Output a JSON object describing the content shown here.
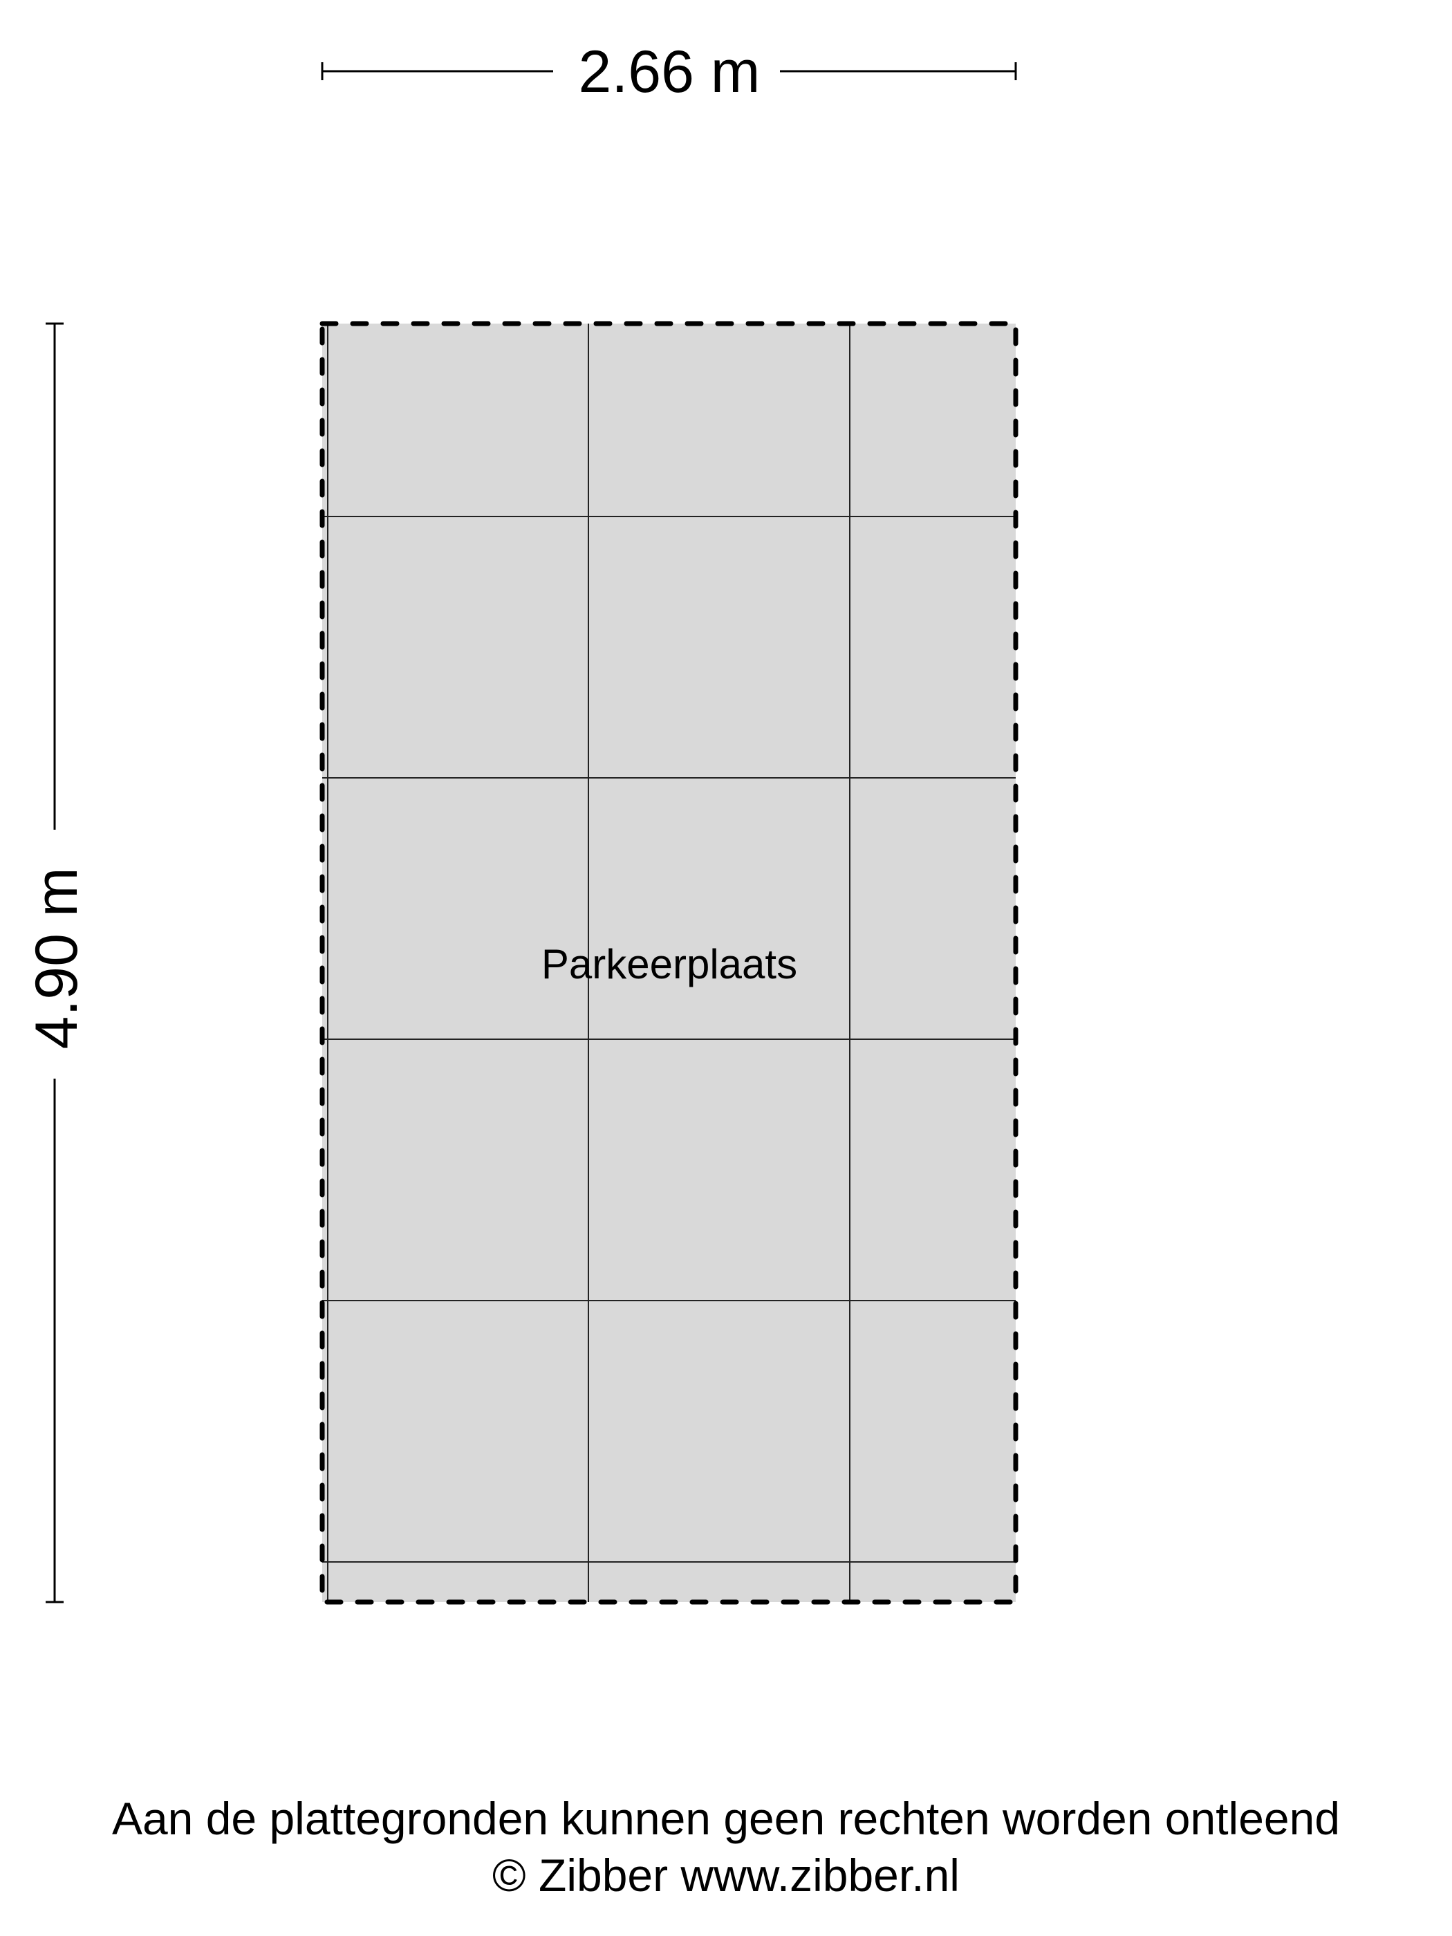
{
  "plan": {
    "width_label": "2.66 m",
    "height_label": "4.90 m",
    "room_label": "Parkeerplaats",
    "fill_color": "#d9d9d9",
    "line_color": "#000000"
  },
  "footer": {
    "disclaimer": "Aan de plattegronden kunnen geen rechten worden ontleend",
    "copyright": "© Zibber www.zibber.nl"
  }
}
